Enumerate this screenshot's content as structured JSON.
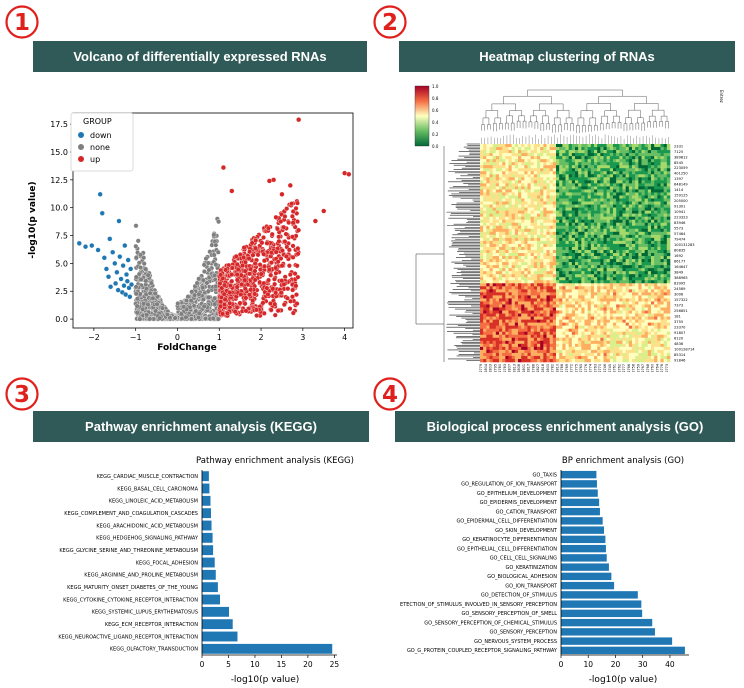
{
  "panels": [
    {
      "number": "1",
      "banner": "Volcano of differentially expressed RNAs"
    },
    {
      "number": "2",
      "banner": "Heatmap clustering of RNAs"
    },
    {
      "number": "3",
      "banner": "Pathway enrichment analysis (KEGG)"
    },
    {
      "number": "4",
      "banner": "Biological process enrichment analysis (GO)"
    }
  ],
  "colors": {
    "banner_bg": "#2f5a57",
    "number_red": "#e0201c",
    "bar": "#1f77b4",
    "down": "#1f77b4",
    "none": "#7f7f7f",
    "up": "#d62728"
  },
  "chart_data": [
    {
      "type": "scatter",
      "title": "",
      "xlabel": "FoldChange",
      "ylabel": "-log10(p value)",
      "xlim": [
        -2.5,
        4.2
      ],
      "ylim": [
        -0.8,
        18.5
      ],
      "xticks": [
        "−2",
        "−1",
        "0",
        "1",
        "2",
        "3",
        "4"
      ],
      "xtick_values": [
        -2,
        -1,
        0,
        1,
        2,
        3,
        4
      ],
      "yticks": [
        "0.0",
        "2.5",
        "5.0",
        "7.5",
        "10.0",
        "12.5",
        "15.0",
        "17.5"
      ],
      "ytick_values": [
        0,
        2.5,
        5,
        7.5,
        10,
        12.5,
        15,
        17.5
      ],
      "legend": {
        "title": "GROUP",
        "placement": "top-left",
        "entries": [
          "down",
          "none",
          "up"
        ]
      },
      "series": [
        {
          "name": "down",
          "points": [
            [
              -2.35,
              6.8
            ],
            [
              -2.2,
              6.5
            ],
            [
              -2.05,
              6.6
            ],
            [
              -1.9,
              6.2
            ],
            [
              -1.85,
              11.2
            ],
            [
              -1.8,
              9.5
            ],
            [
              -1.75,
              5.5
            ],
            [
              -1.7,
              4.5
            ],
            [
              -1.65,
              3.8
            ],
            [
              -1.62,
              7.2
            ],
            [
              -1.6,
              2.9
            ],
            [
              -1.55,
              6.0
            ],
            [
              -1.5,
              5.0
            ],
            [
              -1.48,
              3.2
            ],
            [
              -1.45,
              4.2
            ],
            [
              -1.42,
              2.6
            ],
            [
              -1.4,
              8.8
            ],
            [
              -1.38,
              5.6
            ],
            [
              -1.35,
              3.6
            ],
            [
              -1.32,
              2.4
            ],
            [
              -1.3,
              4.8
            ],
            [
              -1.28,
              3.0
            ],
            [
              -1.26,
              6.6
            ],
            [
              -1.24,
              2.2
            ],
            [
              -1.22,
              4.0
            ],
            [
              -1.2,
              3.4
            ],
            [
              -1.18,
              5.3
            ],
            [
              -1.16,
              2.8
            ],
            [
              -1.14,
              2.0
            ],
            [
              -1.12,
              4.5
            ],
            [
              -1.1,
              3.1
            ]
          ]
        },
        {
          "name": "none",
          "points": []
        },
        {
          "name": "up",
          "points": [
            [
              4.0,
              13.1
            ],
            [
              4.1,
              13.0
            ],
            [
              3.5,
              9.7
            ],
            [
              3.3,
              8.8
            ],
            [
              2.9,
              17.9
            ],
            [
              2.7,
              12.0
            ],
            [
              2.5,
              11.2
            ],
            [
              2.3,
              12.5
            ],
            [
              2.2,
              12.4
            ],
            [
              1.1,
              13.6
            ],
            [
              1.3,
              11.5
            ]
          ]
        }
      ]
    },
    {
      "type": "heatmap",
      "title": "",
      "colorbar_ticks": [
        "1.0",
        "0.8",
        "0.6",
        "0.4",
        "0.2",
        "0.0"
      ],
      "colorbar_label": "",
      "row_labels": [
        "2331",
        "7125",
        "389812",
        "8545",
        "223059",
        "401250",
        "1397",
        "648149",
        "1414",
        "159125",
        "205000",
        "91301",
        "10941",
        "223323",
        "83946",
        "5573",
        "57464",
        "79474",
        "100131283",
        "80835",
        "1692",
        "66177",
        "164647",
        "3849",
        "388965",
        "83995",
        "24589",
        "3006",
        "157322",
        "7373",
        "256851",
        "181",
        "3755",
        "23370",
        "91807",
        "6120",
        "4836",
        "100128714",
        "85314",
        "91846"
      ],
      "col_labels": [
        "GSM1082779",
        "GSM1082804",
        "GSM1082803",
        "GSM1082795",
        "GSM1082780",
        "GSM1082783",
        "GSM1082807",
        "GSM1082813",
        "GSM1082808",
        "GSM1082801",
        "GSM1082817",
        "GSM1082788",
        "GSM1082827",
        "GSM1082818",
        "GSM1082800",
        "GSM1082782",
        "GSM1082810",
        "GSM1082786",
        "GSM1082769",
        "GSM1082772",
        "GSM1082775",
        "GSM1082765",
        "GSM1082776",
        "GSM1082774",
        "GSM1082763",
        "GSM1082770",
        "GSM1082746",
        "GSM1082745",
        "GSM1082761",
        "GSM1082762",
        "GSM1082777",
        "GSM1082766",
        "GSM1082758",
        "GSM1082759",
        "GSM1082767",
        "GSM1082768",
        "GSM1082760",
        "GSM1082764",
        "GSM1082778",
        "GSM1082773"
      ],
      "side_label": "Entrez"
    },
    {
      "type": "bar",
      "orientation": "horizontal",
      "title": "Pathway enrichment analysis (KEGG)",
      "xlabel": "-log10(p value)",
      "xlim": [
        0,
        25.5
      ],
      "xticks": [
        "0",
        "5",
        "10",
        "15",
        "20",
        "25"
      ],
      "xtick_values": [
        0,
        5,
        10,
        15,
        20,
        25
      ],
      "categories": [
        "KEGG_OLFACTORY_TRANSDUCTION",
        "KEGG_NEUROACTIVE_LIGAND_RECEPTOR_INTERACTION",
        "KEGG_ECM_RECEPTOR_INTERACTION",
        "KEGG_SYSTEMIC_LUPUS_ERYTHEMATOSUS",
        "KEGG_CYTOKINE_CYTOKINE_RECEPTOR_INTERACTION",
        "KEGG_MATURITY_ONSET_DIABETES_OF_THE_YOUNG",
        "KEGG_ARGININE_AND_PROLINE_METABOLISM",
        "KEGG_FOCAL_ADHESION",
        "KEGG_GLYCINE_SERINE_AND_THREONINE_METABOLISM",
        "KEGG_HEDGEHOG_SIGNALING_PATHWAY",
        "KEGG_ARACHIDONIC_ACID_METABOLISM",
        "KEGG_COMPLEMENT_AND_COAGULATION_CASCADES",
        "KEGG_LINOLEIC_ACID_METABOLISM",
        "KEGG_BASAL_CELL_CARCINOMA",
        "KEGG_CARDIAC_MUSCLE_CONTRACTION"
      ],
      "values": [
        24.6,
        6.7,
        5.8,
        5.1,
        3.4,
        3.0,
        2.6,
        2.4,
        2.1,
        2.0,
        1.8,
        1.7,
        1.6,
        1.4,
        1.3
      ]
    },
    {
      "type": "bar",
      "orientation": "horizontal",
      "title": "BP enrichment analysis (GO)",
      "xlabel": "-log10(p value)",
      "xlim": [
        0,
        47
      ],
      "xticks": [
        "0",
        "10",
        "20",
        "30",
        "40"
      ],
      "xtick_values": [
        0,
        10,
        20,
        30,
        40
      ],
      "categories": [
        "GO_G_PROTEIN_COUPLED_RECEPTOR_SIGNALING_PATHWAY",
        "GO_NERVOUS_SYSTEM_PROCESS",
        "GO_SENSORY_PERCEPTION",
        "GO_SENSORY_PERCEPTION_OF_CHEMICAL_STIMULUS",
        "GO_SENSORY_PERCEPTION_OF_SMELL",
        "ETECTION_OF_STIMULUS_INVOLVED_IN_SENSORY_PERCEPTION",
        "GO_DETECTION_OF_STIMULUS",
        "GO_ION_TRANSPORT",
        "GO_BIOLOGICAL_ADHESION",
        "GO_KERATINIZATION",
        "GO_CELL_CELL_SIGNALING",
        "GO_EPITHELIAL_CELL_DIFFERENTIATION",
        "GO_KERATINOCYTE_DIFFERENTIATION",
        "GO_SKIN_DEVELOPMENT",
        "GO_EPIDERMAL_CELL_DIFFERENTIATION",
        "GO_CATION_TRANSPORT",
        "GO_EPIDERMIS_DEVELOPMENT",
        "GO_EPITHELIUM_DEVELOPMENT",
        "GO_REGULATION_OF_ION_TRANSPORT",
        "GO_TAXIS"
      ],
      "values": [
        45.5,
        40.8,
        34.5,
        33.5,
        29.8,
        29.5,
        28.2,
        19.5,
        18.5,
        17.6,
        16.8,
        16.5,
        16.3,
        15.8,
        15.3,
        14.3,
        14.0,
        13.5,
        13.2,
        13.0
      ]
    }
  ]
}
